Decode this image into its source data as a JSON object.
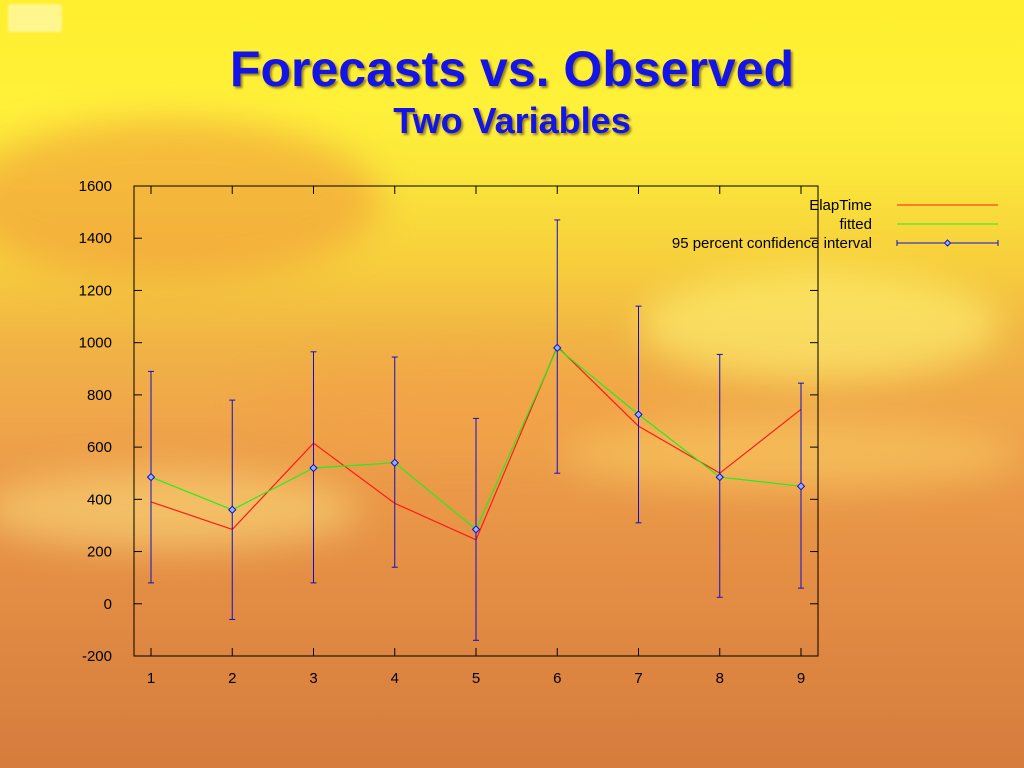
{
  "slide": {
    "title": "Forecasts vs. Observed",
    "subtitle": "Two Variables"
  },
  "colors": {
    "title": "#1414e6",
    "elaptime": "#ff1a1a",
    "fitted": "#22ee22",
    "interval": "#1010cc"
  },
  "chart_data": {
    "type": "line",
    "categories": [
      1,
      2,
      3,
      4,
      5,
      6,
      7,
      8,
      9
    ],
    "ylim": [
      -200,
      1600
    ],
    "yticks": [
      -200,
      0,
      200,
      400,
      600,
      800,
      1000,
      1200,
      1400,
      1600
    ],
    "grid": false,
    "legend_position": "top-right",
    "series": [
      {
        "name": "ElapTime",
        "values": [
          390,
          285,
          615,
          385,
          245,
          985,
          680,
          500,
          745
        ]
      },
      {
        "name": "fitted",
        "values": [
          485,
          360,
          520,
          540,
          285,
          980,
          725,
          485,
          450
        ]
      },
      {
        "name": "95 percent confidence interval",
        "values": [
          485,
          360,
          520,
          540,
          285,
          980,
          725,
          485,
          450
        ],
        "lower": [
          80,
          -60,
          80,
          140,
          -140,
          500,
          310,
          25,
          60
        ],
        "upper": [
          890,
          780,
          965,
          945,
          710,
          1470,
          1140,
          955,
          845
        ]
      }
    ]
  }
}
